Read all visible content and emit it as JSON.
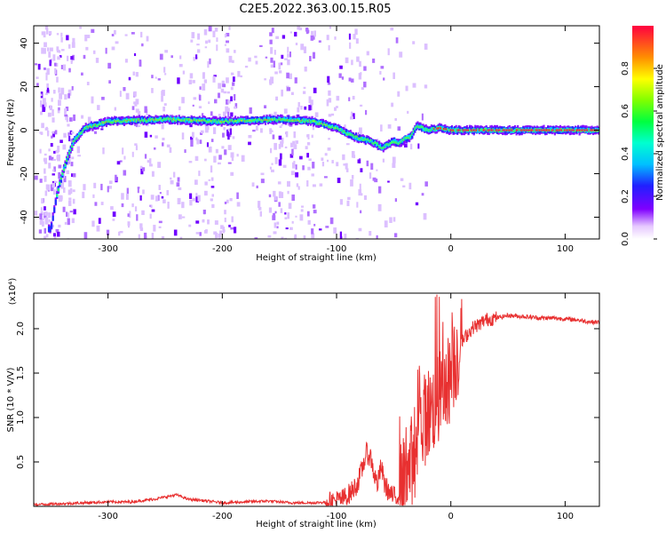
{
  "title": "C2E5.2022.363.00.15.R05",
  "chart_data": [
    {
      "type": "heatmap",
      "xlabel": "Height of straight line (km)",
      "ylabel": "Frequency (Hz)",
      "xlim": [
        -365,
        130
      ],
      "ylim": [
        -50,
        48
      ],
      "xticks": [
        -300,
        -200,
        -100,
        0,
        100
      ],
      "yticks": [
        -40,
        -20,
        0,
        20,
        40
      ],
      "colorbar": {
        "label": "Normalized spectral amplitude",
        "ticks": [
          0.0,
          0.2,
          0.4,
          0.6,
          0.8
        ],
        "tick_labels": [
          "0.0",
          "0.2",
          "0.4",
          "0.6",
          "0.8"
        ],
        "range": [
          0,
          1
        ],
        "colormap": "rainbow (white-violet-blue-cyan-green-yellow-red)"
      },
      "ridge": {
        "x": [
          -350,
          -345,
          -340,
          -335,
          -330,
          -320,
          -300,
          -250,
          -200,
          -150,
          -120,
          -100,
          -85,
          -70,
          -60,
          -50,
          -45,
          -40,
          -35,
          -30,
          -25,
          -20,
          -10,
          0,
          50,
          100,
          130
        ],
        "y": [
          -45,
          -30,
          -20,
          -12,
          -5,
          1,
          4,
          5,
          4,
          5,
          4,
          1,
          -3,
          -5,
          -8,
          -5,
          -6,
          -4,
          -3,
          2,
          1,
          0,
          1,
          0,
          0,
          0,
          0
        ]
      }
    },
    {
      "type": "line",
      "xlabel": "Height of straight line (km)",
      "ylabel": "SNR (10 * V/V)",
      "yscale_label": "(x10⁴)",
      "xlim": [
        -365,
        130
      ],
      "ylim": [
        0,
        2.4
      ],
      "xticks": [
        -300,
        -200,
        -100,
        0,
        100
      ],
      "yticks": [
        0.5,
        1.0,
        1.5,
        2.0
      ],
      "ytick_labels": [
        "0.5",
        "1.0",
        "1.5",
        "2.0"
      ],
      "color": "#e83030",
      "series": [
        {
          "x": [
            -365,
            -340,
            -320,
            -300,
            -280,
            -260,
            -240,
            -230,
            -220,
            -200,
            -180,
            -160,
            -140,
            -120,
            -105,
            -95,
            -88,
            -82,
            -78,
            -74,
            -70,
            -67,
            -64,
            -61,
            -58,
            -55,
            -52,
            -48,
            -44,
            -40,
            -36,
            -32,
            -28,
            -24,
            -20,
            -16,
            -12,
            -8,
            -4,
            0,
            5,
            10,
            15,
            20,
            25,
            30,
            40,
            50,
            60,
            70,
            80,
            90,
            100,
            110,
            120,
            130
          ],
          "y": [
            0.02,
            0.03,
            0.04,
            0.05,
            0.05,
            0.08,
            0.13,
            0.08,
            0.07,
            0.04,
            0.05,
            0.06,
            0.04,
            0.04,
            0.05,
            0.08,
            0.15,
            0.25,
            0.4,
            0.6,
            0.55,
            0.35,
            0.25,
            0.45,
            0.25,
            0.18,
            0.12,
            0.1,
            0.18,
            0.3,
            0.45,
            0.6,
            0.85,
            0.95,
            1.05,
            1.1,
            1.2,
            1.25,
            1.35,
            1.5,
            1.7,
            1.85,
            1.95,
            2.02,
            2.05,
            2.1,
            2.12,
            2.15,
            2.14,
            2.13,
            2.12,
            2.12,
            2.11,
            2.1,
            2.08,
            2.07
          ]
        }
      ]
    }
  ]
}
